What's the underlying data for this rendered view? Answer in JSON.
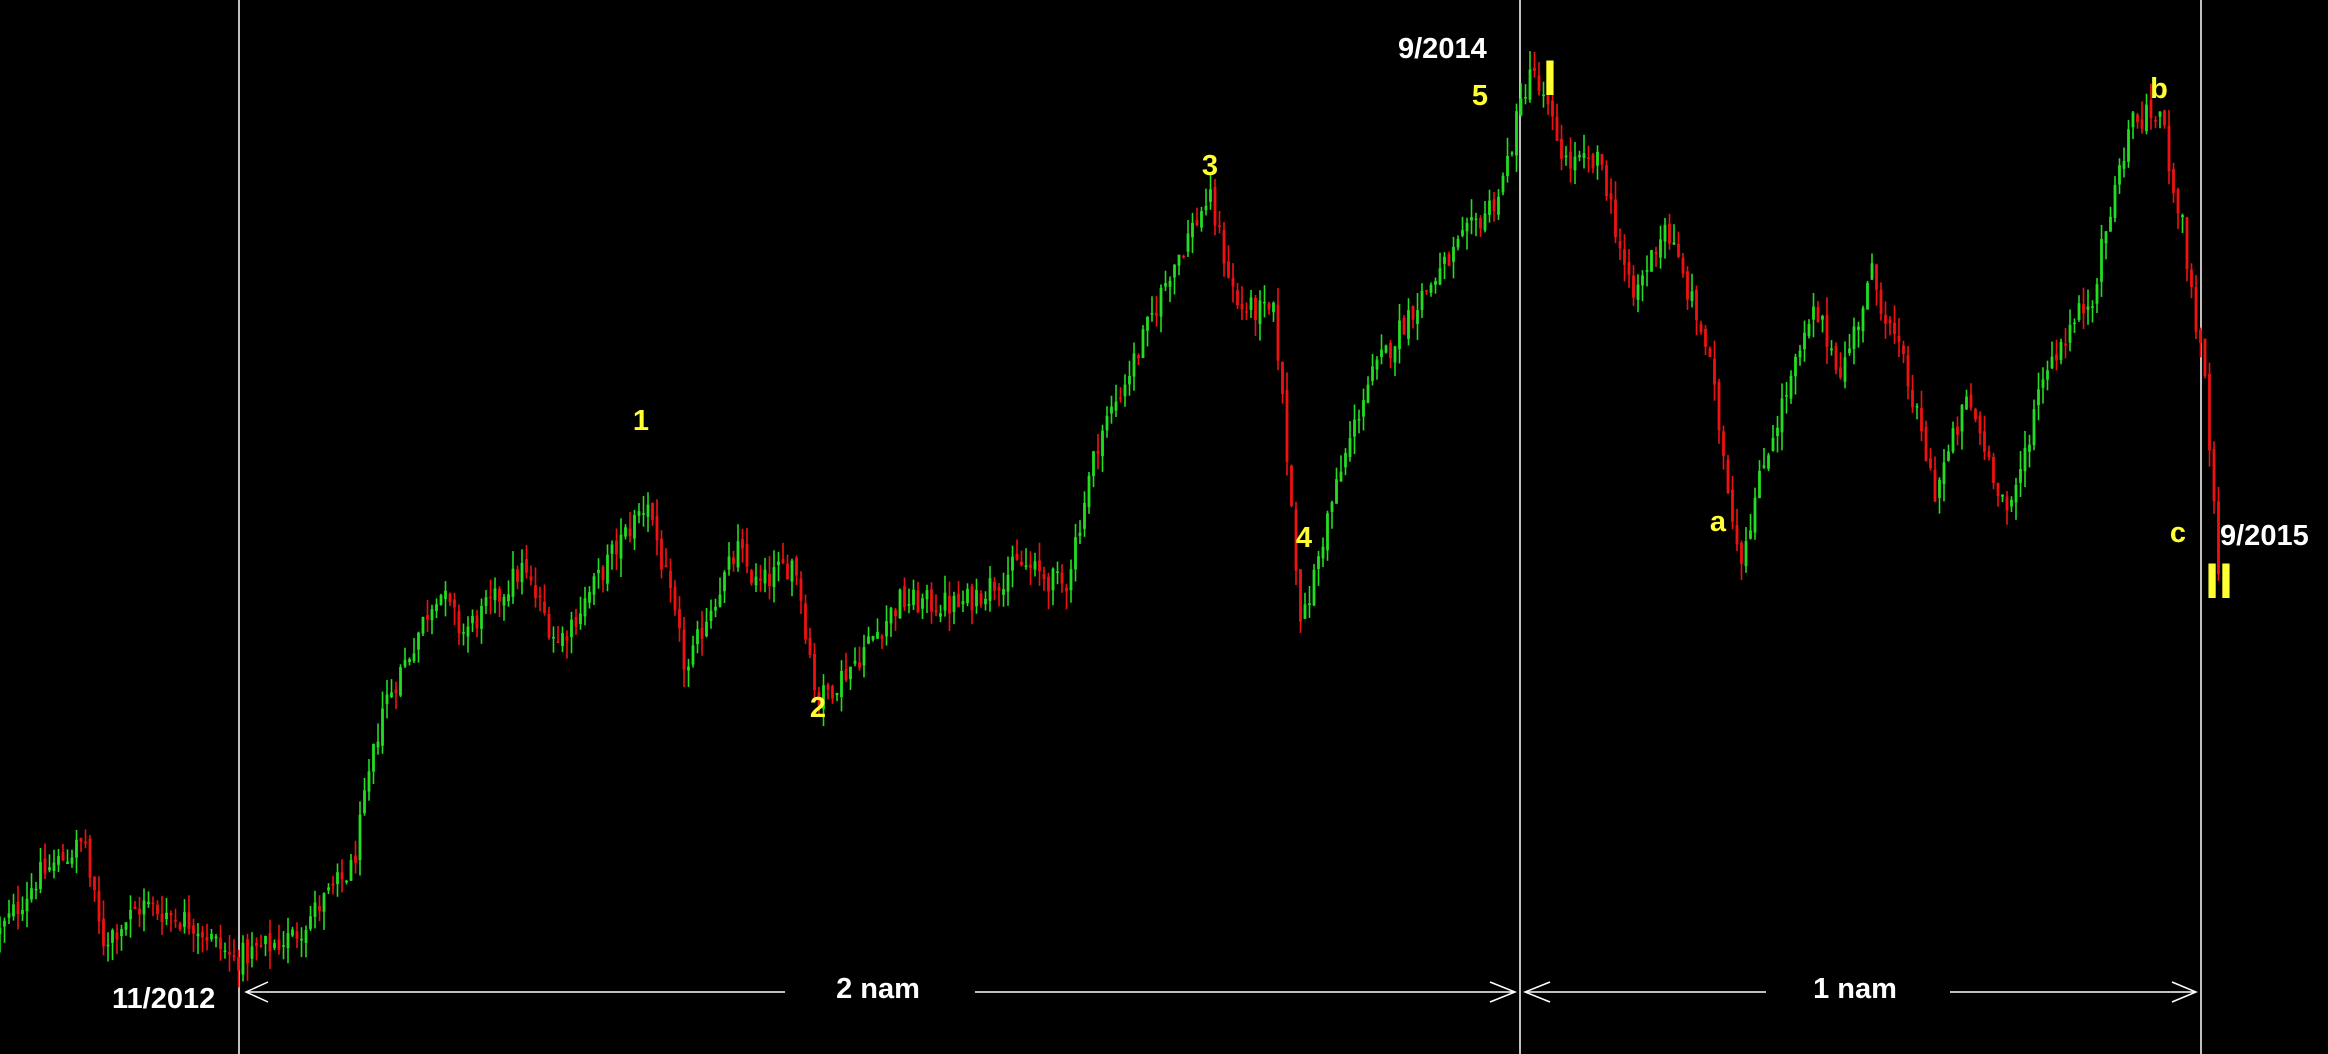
{
  "chart_data": {
    "type": "candlestick",
    "x_labels": {
      "start": "11/2012",
      "wave1_end": "9/2014",
      "wave2_end": "9/2015"
    },
    "spans": [
      {
        "from": "11/2012",
        "to": "9/2014",
        "label": "2 nam"
      },
      {
        "from": "9/2014",
        "to": "9/2015",
        "label": "1 nam"
      }
    ],
    "wave_labels": {
      "minor": [
        {
          "label": "1",
          "role": "peak"
        },
        {
          "label": "2",
          "role": "trough"
        },
        {
          "label": "3",
          "role": "peak"
        },
        {
          "label": "4",
          "role": "trough"
        },
        {
          "label": "5",
          "role": "peak"
        },
        {
          "label": "a",
          "role": "trough"
        },
        {
          "label": "b",
          "role": "peak"
        },
        {
          "label": "c",
          "role": "trough"
        }
      ],
      "major": [
        {
          "label": "I",
          "role": "peak"
        },
        {
          "label": "II",
          "role": "trough"
        }
      ]
    },
    "colors": {
      "background": "#000000",
      "up": "#22dd22",
      "down": "#ee1111",
      "annotation": "#ffff33",
      "axis_text": "#ffffff",
      "guide_lines": "#ffffff"
    },
    "grid": false,
    "legend": "none",
    "price_path_index": [
      {
        "t": 0,
        "v": 6
      },
      {
        "t": 25,
        "v": 18
      },
      {
        "t": 58,
        "v": 26
      },
      {
        "t": 60,
        "v": 18
      },
      {
        "t": 68,
        "v": 4
      },
      {
        "t": 95,
        "v": 12
      },
      {
        "t": 130,
        "v": 8
      },
      {
        "t": 155,
        "v": 0
      },
      {
        "t": 195,
        "v": 5
      },
      {
        "t": 235,
        "v": 20
      },
      {
        "t": 255,
        "v": 55
      },
      {
        "t": 272,
        "v": 66
      },
      {
        "t": 292,
        "v": 81
      },
      {
        "t": 308,
        "v": 71
      },
      {
        "t": 330,
        "v": 78
      },
      {
        "t": 348,
        "v": 85
      },
      {
        "t": 372,
        "v": 69
      },
      {
        "t": 390,
        "v": 78
      },
      {
        "t": 408,
        "v": 88
      },
      {
        "t": 432,
        "v": 100
      },
      {
        "t": 458,
        "v": 62
      },
      {
        "t": 472,
        "v": 76
      },
      {
        "t": 492,
        "v": 89
      },
      {
        "t": 505,
        "v": 81
      },
      {
        "t": 530,
        "v": 87
      },
      {
        "t": 545,
        "v": 56
      },
      {
        "t": 570,
        "v": 65
      },
      {
        "t": 600,
        "v": 78
      },
      {
        "t": 640,
        "v": 77
      },
      {
        "t": 680,
        "v": 86
      },
      {
        "t": 710,
        "v": 81
      },
      {
        "t": 732,
        "v": 113
      },
      {
        "t": 760,
        "v": 133
      },
      {
        "t": 780,
        "v": 150
      },
      {
        "t": 806,
        "v": 166
      },
      {
        "t": 825,
        "v": 142
      },
      {
        "t": 850,
        "v": 140
      },
      {
        "t": 868,
        "v": 72
      },
      {
        "t": 885,
        "v": 96
      },
      {
        "t": 910,
        "v": 124
      },
      {
        "t": 940,
        "v": 141
      },
      {
        "t": 968,
        "v": 153
      },
      {
        "t": 1000,
        "v": 167
      },
      {
        "t": 1020,
        "v": 194
      },
      {
        "t": 1045,
        "v": 173
      },
      {
        "t": 1068,
        "v": 173
      },
      {
        "t": 1088,
        "v": 143
      },
      {
        "t": 1110,
        "v": 160
      },
      {
        "t": 1138,
        "v": 133
      },
      {
        "t": 1160,
        "v": 87
      },
      {
        "t": 1180,
        "v": 113
      },
      {
        "t": 1210,
        "v": 141
      },
      {
        "t": 1228,
        "v": 128
      },
      {
        "t": 1248,
        "v": 149
      },
      {
        "t": 1270,
        "v": 128
      },
      {
        "t": 1290,
        "v": 102
      },
      {
        "t": 1312,
        "v": 122
      },
      {
        "t": 1340,
        "v": 96
      },
      {
        "t": 1362,
        "v": 128
      },
      {
        "t": 1395,
        "v": 145
      },
      {
        "t": 1420,
        "v": 182
      },
      {
        "t": 1440,
        "v": 184
      },
      {
        "t": 1455,
        "v": 159
      },
      {
        "t": 1470,
        "v": 125
      },
      {
        "t": 1480,
        "v": 79
      }
    ]
  }
}
